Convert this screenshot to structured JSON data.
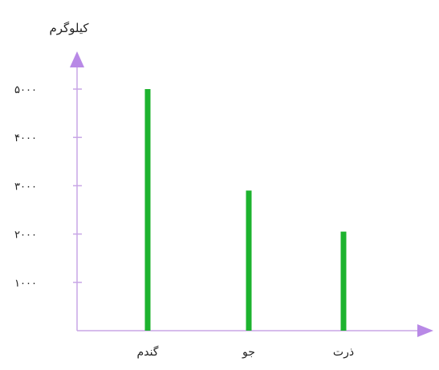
{
  "chart_data": {
    "type": "bar",
    "ylabel": "کیلوگرم",
    "xlabel": "",
    "categories": [
      "گندم",
      "جو",
      "ذرت"
    ],
    "values": [
      5000,
      2900,
      2050
    ],
    "ylim": [
      0,
      5500
    ],
    "yticks": [
      1000,
      2000,
      3000,
      4000,
      5000
    ],
    "ytick_labels": [
      "۱۰۰۰",
      "۲۰۰۰",
      "۳۰۰۰",
      "۴۰۰۰",
      "۵۰۰۰"
    ],
    "grid": false,
    "legend": "none"
  },
  "colors": {
    "bar": "#1db32e",
    "axis": "#c8a6e6",
    "arrow": "#b889e6"
  }
}
